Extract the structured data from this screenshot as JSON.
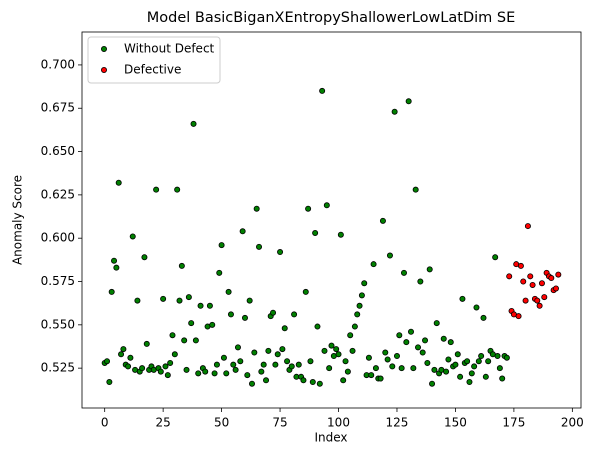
{
  "chart_data": {
    "type": "scatter",
    "title": "Model BasicBiganXEntropyShallowerLowLatDim SE",
    "x_label": "Index",
    "y_label": "Anomaly Score",
    "xlim": [
      -9.7,
      203.7
    ],
    "ylim": [
      0.502,
      0.719
    ],
    "xticks": [
      0,
      25,
      50,
      75,
      100,
      125,
      150,
      175,
      200
    ],
    "yticks": [
      0.525,
      {
        "value": 0.55,
        "label": "0.550"
      },
      0.575,
      {
        "value": 0.6,
        "label": "0.600"
      },
      0.625,
      {
        "value": 0.65,
        "label": "0.650"
      },
      0.675,
      {
        "value": 0.7,
        "label": "0.700"
      }
    ],
    "legend": "upper left",
    "series": [
      {
        "name": "Without Defect",
        "color": "green",
        "x": [
          0,
          1,
          2,
          3,
          4,
          5,
          6,
          7,
          8,
          9,
          10,
          11,
          12,
          13,
          14,
          15,
          16,
          17,
          18,
          19,
          20,
          21,
          22,
          23,
          24,
          25,
          26,
          27,
          28,
          29,
          30,
          31,
          32,
          33,
          34,
          35,
          36,
          37,
          38,
          39,
          40,
          41,
          42,
          43,
          44,
          45,
          46,
          47,
          48,
          49,
          50,
          51,
          52,
          53,
          54,
          55,
          56,
          57,
          58,
          59,
          60,
          61,
          62,
          63,
          64,
          65,
          66,
          67,
          68,
          69,
          70,
          71,
          72,
          73,
          74,
          75,
          76,
          77,
          78,
          79,
          80,
          81,
          82,
          83,
          84,
          85,
          86,
          87,
          88,
          89,
          90,
          91,
          92,
          93,
          94,
          95,
          96,
          97,
          98,
          99,
          100,
          101,
          102,
          103,
          104,
          105,
          106,
          107,
          108,
          109,
          110,
          111,
          112,
          113,
          114,
          115,
          116,
          117,
          118,
          119,
          120,
          121,
          122,
          123,
          124,
          125,
          126,
          127,
          128,
          129,
          130,
          131,
          132,
          133,
          134,
          135,
          136,
          137,
          138,
          139,
          140,
          141,
          142,
          143,
          144,
          145,
          146,
          147,
          148,
          149,
          150,
          151,
          152,
          153,
          154,
          155,
          156,
          157,
          158,
          159,
          160,
          161,
          162,
          163,
          164,
          165,
          166,
          167,
          168,
          169,
          170,
          171,
          172
        ],
        "y": [
          0.528,
          0.529,
          0.517,
          0.569,
          0.587,
          0.583,
          0.632,
          0.533,
          0.536,
          0.527,
          0.526,
          0.531,
          0.601,
          0.524,
          0.564,
          0.523,
          0.525,
          0.589,
          0.539,
          0.524,
          0.526,
          0.524,
          0.628,
          0.525,
          0.523,
          0.565,
          0.526,
          0.521,
          0.528,
          0.544,
          0.533,
          0.628,
          0.564,
          0.584,
          0.541,
          0.524,
          0.566,
          0.551,
          0.666,
          0.541,
          0.522,
          0.561,
          0.525,
          0.523,
          0.549,
          0.561,
          0.55,
          0.522,
          0.527,
          0.58,
          0.596,
          0.531,
          0.522,
          0.569,
          0.556,
          0.527,
          0.524,
          0.537,
          0.529,
          0.604,
          0.554,
          0.521,
          0.564,
          0.516,
          0.534,
          0.617,
          0.595,
          0.523,
          0.527,
          0.518,
          0.535,
          0.555,
          0.557,
          0.527,
          0.533,
          0.592,
          0.536,
          0.548,
          0.529,
          0.524,
          0.526,
          0.556,
          0.52,
          0.527,
          0.52,
          0.518,
          0.569,
          0.617,
          0.529,
          0.517,
          0.603,
          0.549,
          0.516,
          0.685,
          0.535,
          0.619,
          0.525,
          0.538,
          0.532,
          0.536,
          0.533,
          0.602,
          0.518,
          0.529,
          0.523,
          0.544,
          0.535,
          0.549,
          0.556,
          0.561,
          0.567,
          0.574,
          0.521,
          0.531,
          0.521,
          0.585,
          0.525,
          0.519,
          0.519,
          0.61,
          0.534,
          0.53,
          0.59,
          0.526,
          0.673,
          0.532,
          0.544,
          0.525,
          0.58,
          0.54,
          0.679,
          0.546,
          0.525,
          0.628,
          0.537,
          0.575,
          0.534,
          0.541,
          0.528,
          0.582,
          0.516,
          0.524,
          0.551,
          0.522,
          0.524,
          0.542,
          0.523,
          0.53,
          0.54,
          0.526,
          0.527,
          0.533,
          0.52,
          0.565,
          0.528,
          0.529,
          0.517,
          0.522,
          0.526,
          0.56,
          0.529,
          0.532,
          0.554,
          0.52,
          0.529,
          0.535,
          0.533,
          0.589,
          0.532,
          0.525,
          0.519,
          0.532,
          0.531
        ]
      },
      {
        "name": "Defective",
        "color": "red",
        "x": [
          173,
          174,
          175,
          176,
          177,
          178,
          179,
          180,
          181,
          182,
          183,
          184,
          185,
          186,
          187,
          188,
          189,
          190,
          191,
          192,
          193,
          194
        ],
        "y": [
          0.578,
          0.558,
          0.556,
          0.585,
          0.555,
          0.584,
          0.575,
          0.564,
          0.607,
          0.578,
          0.573,
          0.565,
          0.564,
          0.561,
          0.574,
          0.566,
          0.58,
          0.578,
          0.577,
          0.57,
          0.571,
          0.579
        ]
      }
    ]
  }
}
